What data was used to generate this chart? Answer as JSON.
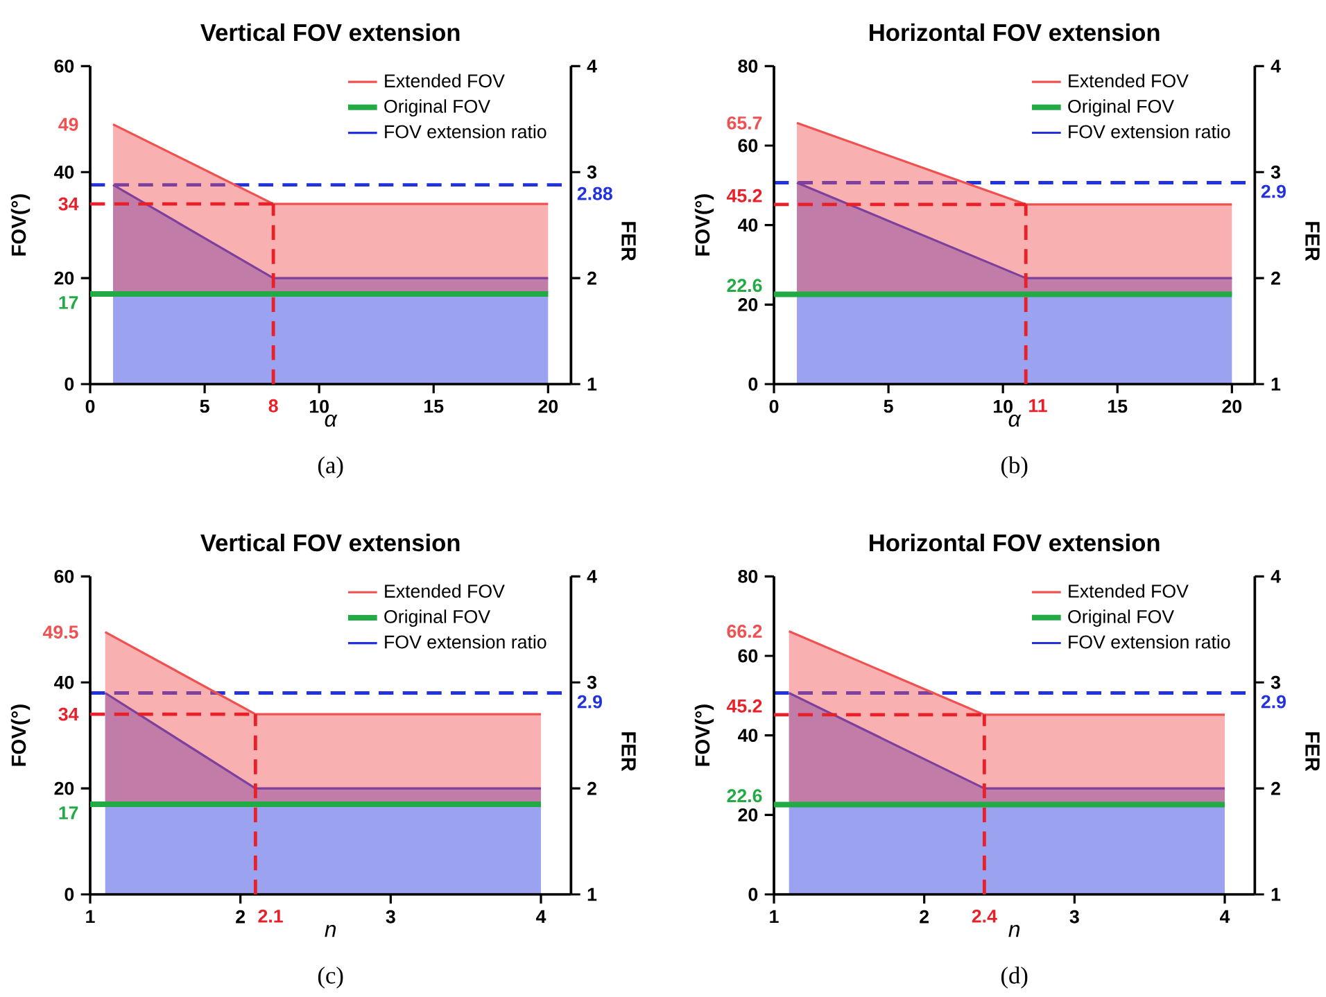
{
  "chart_data": [
    {
      "type": "area",
      "title": "Vertical FOV extension",
      "xlabel": "α",
      "ylabel": "FOV(°)",
      "y2label": "FER",
      "annotations": [
        "(a)",
        {
          "text": "49",
          "x": 1,
          "y": 49
        },
        {
          "text": "17",
          "x": 0,
          "y": 17
        }
      ],
      "xlim": [
        0,
        21
      ],
      "xticks": [
        0,
        5,
        10,
        15,
        20
      ],
      "ylim": [
        0,
        60
      ],
      "yticks": [
        0,
        20,
        40,
        60
      ],
      "y2lim": [
        1,
        4
      ],
      "y2ticks": [
        1,
        2,
        3,
        4
      ],
      "legend": "top right",
      "series": [
        {
          "name": "Extended FOV",
          "type": "area",
          "color": "#f05050",
          "x": [
            1,
            8,
            20
          ],
          "values": [
            49,
            34,
            34
          ]
        },
        {
          "name": "Original FOV",
          "type": "line",
          "color": "#22aa44",
          "x": [
            0,
            20
          ],
          "values": [
            17,
            17
          ]
        },
        {
          "name": "FOV extension ratio",
          "type": "area",
          "axis": "y2",
          "color": "#2233dd",
          "x": [
            1,
            8,
            20
          ],
          "values": [
            2.88,
            2,
            2
          ]
        }
      ],
      "ref_lines": [
        {
          "axis": "y",
          "value": 34,
          "label": "34",
          "color": "#e8202a",
          "line_style": "dashed"
        },
        {
          "axis": "x",
          "value": 8,
          "label": "8",
          "color": "#e8202a",
          "line_style": "dashed"
        },
        {
          "axis": "y2",
          "value": 2.88,
          "label": "2.88",
          "color": "#2233dd",
          "line_style": "dashed"
        }
      ]
    },
    {
      "type": "area",
      "title": "Horizontal FOV extension",
      "xlabel": "α",
      "ylabel": "FOV(°)",
      "y2label": "FER",
      "annotations": [
        "(b)",
        {
          "text": "65.7",
          "x": 1,
          "y": 65.7
        },
        {
          "text": "22.6",
          "x": 0,
          "y": 22.6
        }
      ],
      "xlim": [
        0,
        21
      ],
      "xticks": [
        0,
        5,
        10,
        15,
        20
      ],
      "ylim": [
        0,
        80
      ],
      "yticks": [
        0,
        20,
        40,
        60,
        80
      ],
      "y2lim": [
        1,
        4
      ],
      "y2ticks": [
        1,
        2,
        3,
        4
      ],
      "legend": "top right",
      "series": [
        {
          "name": "Extended FOV",
          "type": "area",
          "color": "#f05050",
          "x": [
            1,
            11,
            20
          ],
          "values": [
            65.7,
            45.2,
            45.2
          ]
        },
        {
          "name": "Original FOV",
          "type": "line",
          "color": "#22aa44",
          "x": [
            0,
            20
          ],
          "values": [
            22.6,
            22.6
          ]
        },
        {
          "name": "FOV extension ratio",
          "type": "area",
          "axis": "y2",
          "color": "#2233dd",
          "x": [
            1,
            11,
            20
          ],
          "values": [
            2.9,
            2,
            2
          ]
        }
      ],
      "ref_lines": [
        {
          "axis": "y",
          "value": 45.2,
          "label": "45.2",
          "color": "#e8202a",
          "line_style": "dashed"
        },
        {
          "axis": "x",
          "value": 11,
          "label": "11",
          "color": "#e8202a",
          "line_style": "dashed"
        },
        {
          "axis": "y2",
          "value": 2.9,
          "label": "2.9",
          "color": "#2233dd",
          "line_style": "dashed"
        }
      ]
    },
    {
      "type": "area",
      "title": "Vertical FOV extension",
      "xlabel": "n",
      "ylabel": "FOV(°)",
      "y2label": "FER",
      "annotations": [
        "(c)",
        {
          "text": "49.5",
          "x": 1.1,
          "y": 49.5
        },
        {
          "text": "17",
          "x": 1,
          "y": 17
        }
      ],
      "xlim": [
        1,
        4.2
      ],
      "xticks": [
        1,
        2,
        3,
        4
      ],
      "ylim": [
        0,
        60
      ],
      "yticks": [
        0,
        20,
        40,
        60
      ],
      "y2lim": [
        1,
        4
      ],
      "y2ticks": [
        1,
        2,
        3,
        4
      ],
      "legend": "top right",
      "series": [
        {
          "name": "Extended FOV",
          "type": "area",
          "color": "#f05050",
          "x": [
            1.1,
            2.1,
            4
          ],
          "values": [
            49.5,
            34,
            34
          ]
        },
        {
          "name": "Original FOV",
          "type": "line",
          "color": "#22aa44",
          "x": [
            1,
            4
          ],
          "values": [
            17,
            17
          ]
        },
        {
          "name": "FOV extension ratio",
          "type": "area",
          "axis": "y2",
          "color": "#2233dd",
          "x": [
            1.1,
            2.1,
            4
          ],
          "values": [
            2.9,
            2,
            2
          ]
        }
      ],
      "ref_lines": [
        {
          "axis": "y",
          "value": 34,
          "label": "34",
          "color": "#e8202a",
          "line_style": "dashed"
        },
        {
          "axis": "x",
          "value": 2.1,
          "label": "2.1",
          "color": "#e8202a",
          "line_style": "dashed"
        },
        {
          "axis": "y2",
          "value": 2.9,
          "label": "2.9",
          "color": "#2233dd",
          "line_style": "dashed"
        }
      ]
    },
    {
      "type": "area",
      "title": "Horizontal FOV extension",
      "xlabel": "n",
      "ylabel": "FOV(°)",
      "y2label": "FER",
      "annotations": [
        "(d)",
        {
          "text": "66.2",
          "x": 1.1,
          "y": 66.2
        },
        {
          "text": "22.6",
          "x": 1,
          "y": 22.6
        }
      ],
      "xlim": [
        1,
        4.2
      ],
      "xticks": [
        1,
        2,
        3,
        4
      ],
      "ylim": [
        0,
        80
      ],
      "yticks": [
        0,
        20,
        40,
        60,
        80
      ],
      "y2lim": [
        1,
        4
      ],
      "y2ticks": [
        1,
        2,
        3,
        4
      ],
      "legend": "top right",
      "series": [
        {
          "name": "Extended FOV",
          "type": "area",
          "color": "#f05050",
          "x": [
            1.1,
            2.4,
            4
          ],
          "values": [
            66.2,
            45.2,
            45.2
          ]
        },
        {
          "name": "Original FOV",
          "type": "line",
          "color": "#22aa44",
          "x": [
            1,
            4
          ],
          "values": [
            22.6,
            22.6
          ]
        },
        {
          "name": "FOV extension ratio",
          "type": "area",
          "axis": "y2",
          "color": "#2233dd",
          "x": [
            1.1,
            2.4,
            4
          ],
          "values": [
            2.9,
            2,
            2
          ]
        }
      ],
      "ref_lines": [
        {
          "axis": "y",
          "value": 45.2,
          "label": "45.2",
          "color": "#e8202a",
          "line_style": "dashed"
        },
        {
          "axis": "x",
          "value": 2.4,
          "label": "2.4",
          "color": "#e8202a",
          "line_style": "dashed"
        },
        {
          "axis": "y2",
          "value": 2.9,
          "label": "2.9",
          "color": "#2233dd",
          "line_style": "dashed"
        }
      ]
    }
  ]
}
